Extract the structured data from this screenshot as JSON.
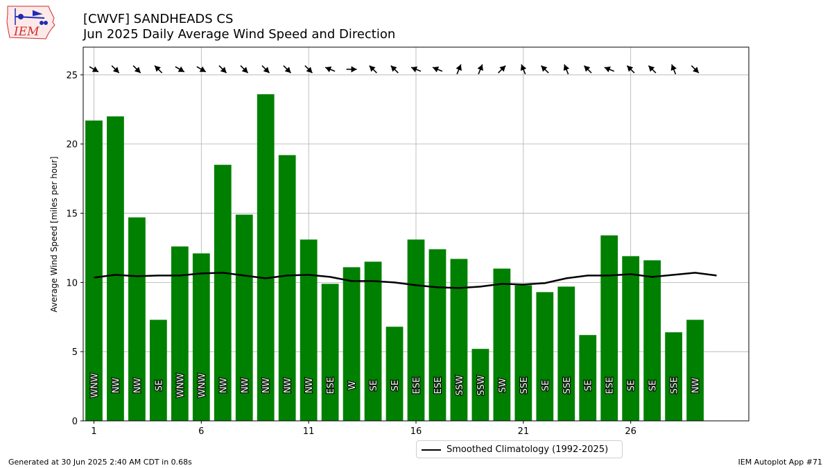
{
  "header": {
    "title_line1": "[CWVF] SANDHEADS CS",
    "title_line2": "Jun 2025 Daily Average Wind Speed and Direction",
    "logo_text": "IEM"
  },
  "footer": {
    "generated": "Generated at 30 Jun 2025 2:40 AM CDT in 0.68s",
    "app": "IEM Autoplot App #71"
  },
  "legend": {
    "label": "Smoothed Climatology (1992-2025)"
  },
  "colors": {
    "bar": "#008000",
    "climo_line": "#000000",
    "arrow": "#000000",
    "logo_red": "#d22b2b",
    "logo_blue": "#1d2bb5"
  },
  "chart_data": {
    "type": "bar",
    "xlabel": "",
    "ylabel": "Average Wind Speed [miles per hour]",
    "xlim": [
      0.5,
      31.5
    ],
    "ylim": [
      0,
      27
    ],
    "x_ticks": [
      1,
      6,
      11,
      16,
      21,
      26
    ],
    "y_ticks": [
      0,
      5,
      10,
      15,
      20,
      25
    ],
    "grid": true,
    "legend_position": "below-center",
    "categories": [
      1,
      2,
      3,
      4,
      5,
      6,
      7,
      8,
      9,
      10,
      11,
      12,
      13,
      14,
      15,
      16,
      17,
      18,
      19,
      20,
      21,
      22,
      23,
      24,
      25,
      26,
      27,
      28,
      29
    ],
    "values": [
      21.7,
      22.0,
      14.7,
      7.3,
      12.6,
      12.1,
      18.5,
      14.9,
      23.6,
      19.2,
      13.1,
      9.9,
      11.1,
      11.5,
      6.8,
      13.1,
      12.4,
      11.7,
      5.2,
      11.0,
      9.8,
      9.3,
      9.7,
      6.2,
      13.4,
      11.9,
      11.6,
      6.4,
      7.3
    ],
    "direction_labels": [
      "WNW",
      "NW",
      "NW",
      "SE",
      "WNW",
      "WNW",
      "NW",
      "NW",
      "NW",
      "NW",
      "NW",
      "ESE",
      "W",
      "SE",
      "SE",
      "ESE",
      "ESE",
      "SSW",
      "SSW",
      "SW",
      "SSE",
      "SE",
      "SSE",
      "SE",
      "ESE",
      "SE",
      "SE",
      "SSE",
      "NW"
    ],
    "direction_degrees": [
      300,
      315,
      315,
      135,
      300,
      300,
      315,
      315,
      315,
      315,
      315,
      112,
      270,
      135,
      135,
      112,
      112,
      202,
      202,
      225,
      158,
      135,
      158,
      135,
      112,
      135,
      135,
      158,
      315
    ],
    "series": [
      {
        "name": "Smoothed Climatology (1992-2025)",
        "type": "line",
        "x": [
          1,
          2,
          3,
          4,
          5,
          6,
          7,
          8,
          9,
          10,
          11,
          12,
          13,
          14,
          15,
          16,
          17,
          18,
          19,
          20,
          21,
          22,
          23,
          24,
          25,
          26,
          27,
          28,
          29,
          30
        ],
        "values": [
          10.35,
          10.55,
          10.45,
          10.5,
          10.5,
          10.65,
          10.7,
          10.5,
          10.3,
          10.5,
          10.55,
          10.4,
          10.1,
          10.1,
          10.0,
          9.8,
          9.65,
          9.6,
          9.7,
          9.9,
          9.85,
          9.95,
          10.3,
          10.5,
          10.5,
          10.6,
          10.4,
          10.55,
          10.7,
          10.5
        ]
      }
    ]
  }
}
